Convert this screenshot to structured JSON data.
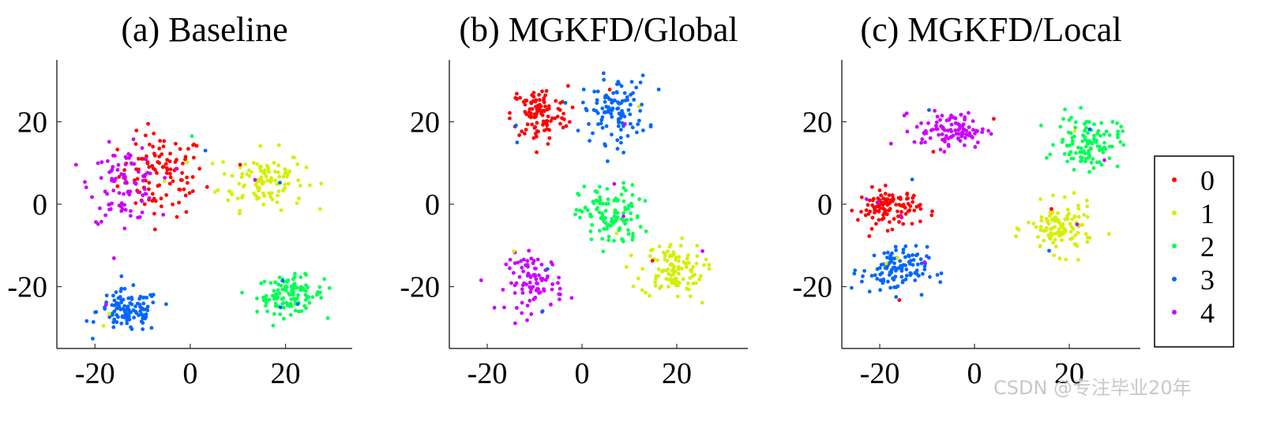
{
  "chart_data": [
    {
      "type": "scatter",
      "title": "(a) Baseline",
      "xlabel": "",
      "ylabel": "",
      "xlim": [
        -28,
        34
      ],
      "ylim": [
        -35,
        35
      ],
      "xticks": [
        -20,
        0,
        20
      ],
      "yticks": [
        -20,
        0,
        20
      ],
      "xtick_labels": [
        "-20",
        "0",
        "20"
      ],
      "ytick_labels": [
        "-20",
        "0",
        "20"
      ],
      "grid": false,
      "clusters": [
        {
          "class": "0",
          "cx": -6,
          "cy": 7,
          "sx": 4.5,
          "sy": 5,
          "n": 110
        },
        {
          "class": "1",
          "cx": 15,
          "cy": 6,
          "sx": 4.5,
          "sy": 3.6,
          "n": 110
        },
        {
          "class": "2",
          "cx": 21,
          "cy": -22,
          "sx": 3.5,
          "sy": 2.2,
          "n": 110
        },
        {
          "class": "3",
          "cx": -13,
          "cy": -26,
          "sx": 3.3,
          "sy": 2.6,
          "n": 110
        },
        {
          "class": "4",
          "cx": -14,
          "cy": 5,
          "sx": 3.5,
          "sy": 4.5,
          "n": 90
        }
      ]
    },
    {
      "type": "scatter",
      "title": "(b) MGKFD/Global",
      "xlabel": "",
      "ylabel": "",
      "xlim": [
        -28,
        35
      ],
      "ylim": [
        -35,
        35
      ],
      "xticks": [
        -20,
        0,
        20
      ],
      "yticks": [
        -20,
        0,
        20
      ],
      "xtick_labels": [
        "-20",
        "0",
        "20"
      ],
      "ytick_labels": [
        "-20",
        "0",
        "20"
      ],
      "grid": false,
      "clusters": [
        {
          "class": "0",
          "cx": -9,
          "cy": 22,
          "sx": 3,
          "sy": 3.3,
          "n": 110
        },
        {
          "class": "1",
          "cx": 19,
          "cy": -16,
          "sx": 3.3,
          "sy": 3.3,
          "n": 110
        },
        {
          "class": "2",
          "cx": 6,
          "cy": -3,
          "sx": 3.3,
          "sy": 3.8,
          "n": 110
        },
        {
          "class": "3",
          "cx": 7,
          "cy": 23,
          "sx": 3.5,
          "sy": 4,
          "n": 110
        },
        {
          "class": "4",
          "cx": -10,
          "cy": -19,
          "sx": 3,
          "sy": 3.5,
          "n": 90
        }
      ]
    },
    {
      "type": "scatter",
      "title": "(c) MGKFD/Local",
      "xlabel": "",
      "ylabel": "",
      "xlim": [
        -28,
        35
      ],
      "ylim": [
        -35,
        35
      ],
      "xticks": [
        -20,
        0,
        20
      ],
      "yticks": [
        -20,
        0,
        20
      ],
      "xtick_labels": [
        "-20",
        "0",
        "20"
      ],
      "ytick_labels": [
        "-20",
        "0",
        "20"
      ],
      "grid": false,
      "clusters": [
        {
          "class": "0",
          "cx": -18,
          "cy": -1,
          "sx": 3.3,
          "sy": 2.3,
          "n": 110
        },
        {
          "class": "1",
          "cx": 18,
          "cy": -6,
          "sx": 3.5,
          "sy": 3,
          "n": 110
        },
        {
          "class": "2",
          "cx": 24,
          "cy": 15,
          "sx": 3.3,
          "sy": 3.2,
          "n": 110
        },
        {
          "class": "3",
          "cx": -17,
          "cy": -16,
          "sx": 3.5,
          "sy": 2.8,
          "n": 110
        },
        {
          "class": "4",
          "cx": -5,
          "cy": 18,
          "sx": 3.8,
          "sy": 2.2,
          "n": 100
        }
      ]
    }
  ],
  "legend": {
    "placement": "right",
    "entries": [
      {
        "label": "0",
        "color": "#ff0000"
      },
      {
        "label": "1",
        "color": "#d4f000"
      },
      {
        "label": "2",
        "color": "#00ff55"
      },
      {
        "label": "3",
        "color": "#0066ff"
      },
      {
        "label": "4",
        "color": "#cc00ff"
      }
    ]
  },
  "watermark": "CSDN @专注毕业20年"
}
